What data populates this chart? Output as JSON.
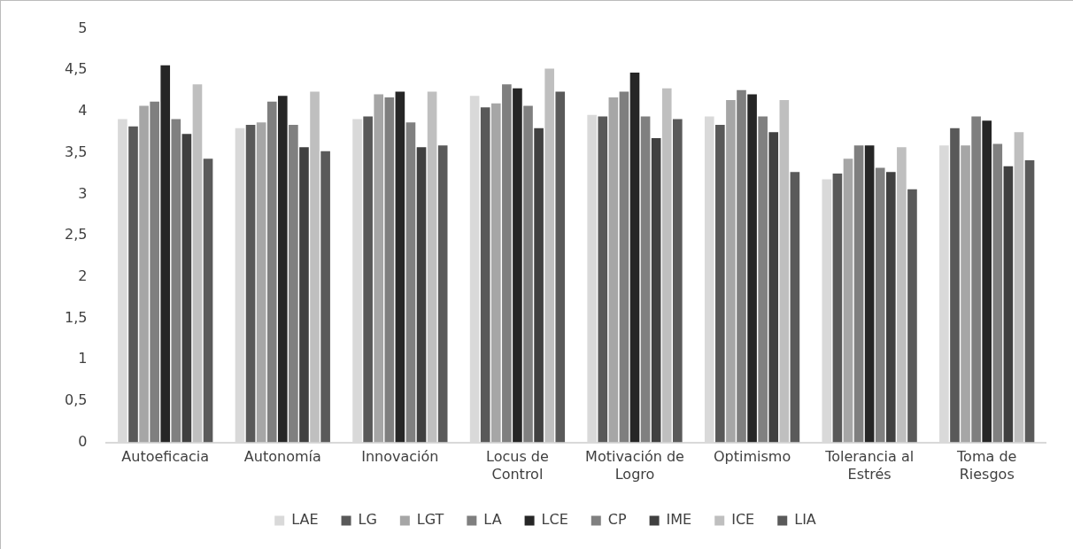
{
  "chart_data": {
    "type": "bar",
    "categories": [
      "Autoeficacia",
      "Autonomía",
      "Innovación",
      "Locus de Control",
      "Motivación de Logro",
      "Optimismo",
      "Tolerancia al Estrés",
      "Toma de Riesgos"
    ],
    "series": [
      {
        "name": "LAE",
        "color": "#d9d9d9",
        "values": [
          3.91,
          3.8,
          3.91,
          4.19,
          3.96,
          3.94,
          3.18,
          3.59
        ]
      },
      {
        "name": "LG",
        "color": "#595959",
        "values": [
          3.82,
          3.84,
          3.94,
          4.05,
          3.94,
          3.84,
          3.25,
          3.8
        ]
      },
      {
        "name": "LGT",
        "color": "#a6a6a6",
        "values": [
          4.07,
          3.87,
          4.21,
          4.1,
          4.17,
          4.14,
          3.43,
          3.59
        ]
      },
      {
        "name": "LA",
        "color": "#7f7f7f",
        "values": [
          4.12,
          4.12,
          4.17,
          4.33,
          4.24,
          4.26,
          3.59,
          3.94
        ]
      },
      {
        "name": "LCE",
        "color": "#262626",
        "values": [
          4.56,
          4.19,
          4.24,
          4.28,
          4.47,
          4.21,
          3.59,
          3.89
        ]
      },
      {
        "name": "CP",
        "color": "#808080",
        "values": [
          3.91,
          3.84,
          3.87,
          4.07,
          3.94,
          3.94,
          3.32,
          3.61
        ]
      },
      {
        "name": "IME",
        "color": "#404040",
        "values": [
          3.73,
          3.57,
          3.57,
          3.8,
          3.68,
          3.75,
          3.27,
          3.34
        ]
      },
      {
        "name": "ICE",
        "color": "#bfbfbf",
        "values": [
          4.33,
          4.24,
          4.24,
          4.52,
          4.28,
          4.14,
          3.57,
          3.75
        ]
      },
      {
        "name": "LIA",
        "color": "#5a5a5a",
        "values": [
          3.43,
          3.52,
          3.59,
          4.24,
          3.91,
          3.27,
          3.06,
          3.41
        ]
      }
    ],
    "ylim": [
      0,
      5
    ],
    "yticks": [
      {
        "value": 0,
        "label": "0"
      },
      {
        "value": 0.5,
        "label": "0,5"
      },
      {
        "value": 1,
        "label": "1"
      },
      {
        "value": 1.5,
        "label": "1,5"
      },
      {
        "value": 2,
        "label": "2"
      },
      {
        "value": 2.5,
        "label": "2,5"
      },
      {
        "value": 3,
        "label": "3"
      },
      {
        "value": 3.5,
        "label": "3,5"
      },
      {
        "value": 4,
        "label": "4"
      },
      {
        "value": 4.5,
        "label": "4,5"
      },
      {
        "value": 5,
        "label": "5"
      }
    ],
    "grid": false,
    "legend": "bottom"
  }
}
